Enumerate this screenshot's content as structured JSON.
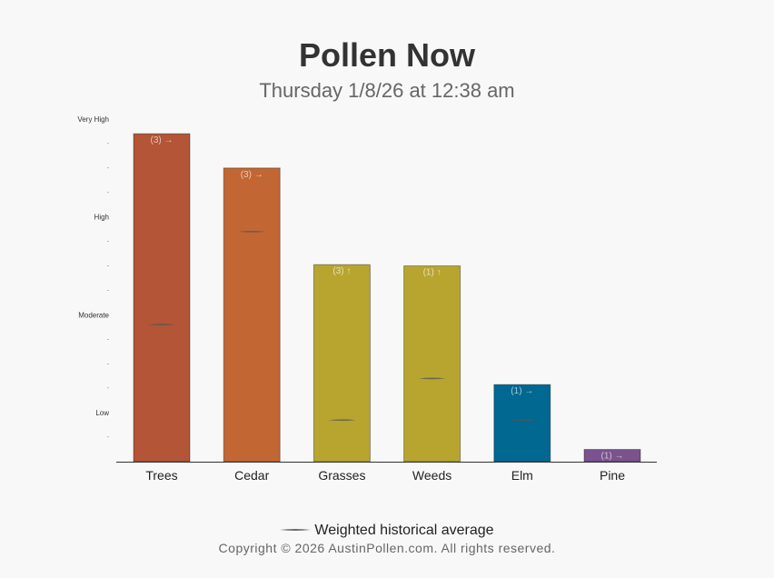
{
  "header": {
    "title": "Pollen Now",
    "subtitle": "Thursday 1/8/26 at 12:38 am"
  },
  "legend": {
    "label": "Weighted historical average"
  },
  "footer": {
    "copyright": "Copyright © 2026 AustinPollen.com.  All rights reserved."
  },
  "colors": {
    "trees": "#b35536",
    "cedar": "#c26734",
    "grasses": "#b8a530",
    "weeds": "#b8a530",
    "elm": "#006891",
    "pine": "#7a528e",
    "baseline": "#333333",
    "avg_marker": "#555555"
  },
  "chart_data": {
    "type": "bar",
    "categories": [
      "Trees",
      "Cedar",
      "Grasses",
      "Weeds",
      "Elm",
      "Pine"
    ],
    "values": [
      13.4,
      12.0,
      8.05,
      8.0,
      3.15,
      0.5
    ],
    "bar_labels": [
      "(3) →",
      "(3) →",
      "(3) ↑",
      "(1) ↑",
      "(1) →",
      "(1) →"
    ],
    "historical_average": [
      5.6,
      9.4,
      1.7,
      3.4,
      1.7,
      null
    ],
    "ylim": [
      0,
      14
    ],
    "y_major_ticks": [
      {
        "value": 2,
        "label": "Low"
      },
      {
        "value": 6,
        "label": "Moderate"
      },
      {
        "value": 10,
        "label": "High"
      },
      {
        "value": 14,
        "label": "Very High"
      }
    ],
    "y_minor_ticks": [
      1,
      3,
      4,
      5,
      7,
      8,
      9,
      11,
      12,
      13
    ],
    "y_minor_label": "-",
    "legend_position": "bottom",
    "grid": false
  }
}
